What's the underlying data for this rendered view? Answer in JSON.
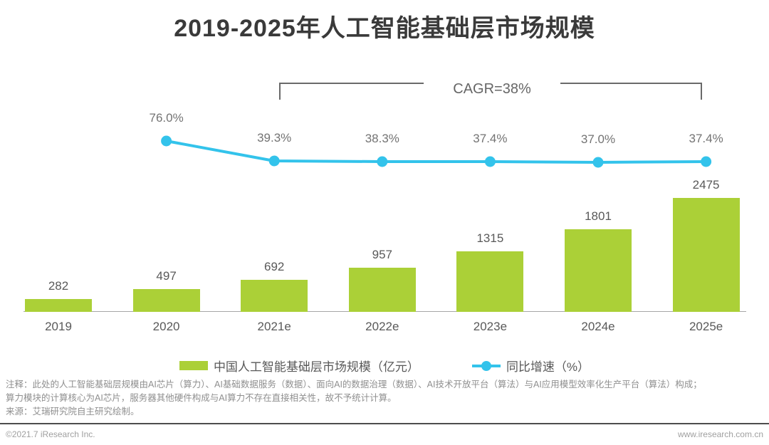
{
  "title": "2019-2025年人工智能基础层市场规模",
  "annotation": {
    "cagr_label": "CAGR=38%"
  },
  "chart_data": {
    "type": "bar",
    "categories": [
      "2019",
      "2020",
      "2021e",
      "2022e",
      "2023e",
      "2024e",
      "2025e"
    ],
    "series": [
      {
        "name": "中国人工智能基础层市场规模（亿元）",
        "type": "bar",
        "color": "#ABD037",
        "values": [
          282,
          497,
          692,
          957,
          1315,
          1801,
          2475
        ]
      },
      {
        "name": "同比增速（%）",
        "type": "line",
        "color": "#33C3EB",
        "values": [
          null,
          76.0,
          39.3,
          38.3,
          37.4,
          37.0,
          37.4
        ],
        "point_labels": [
          "",
          "76.0%",
          "39.3%",
          "38.3%",
          "37.4%",
          "37.0%",
          "37.4%"
        ]
      }
    ],
    "title": "2019-2025年人工智能基础层市场规模",
    "annotation": "CAGR=38%",
    "legend_position": "bottom",
    "grid": false
  },
  "legend": [
    {
      "label": "中国人工智能基础层市场规模（亿元）",
      "color": "#ABD037",
      "marker": "rect"
    },
    {
      "label": "同比增速（%）",
      "color": "#33C3EB",
      "marker": "line-dot"
    }
  ],
  "notes": {
    "line1": "注释：此处的人工智能基础层规模由AI芯片（算力）、AI基础数据服务（数据）、面向AI的数据治理（数据）、AI技术开放平台（算法）与AI应用模型效率化生产平台（算法）构成；",
    "line2": "算力模块的计算核心为AI芯片，服务器其他硬件构成与AI算力不存在直接相关性，故不予统计计算。",
    "source": "来源：艾瑞研究院自主研究绘制。"
  },
  "footer": {
    "copyright": "©2021.7 iResearch Inc.",
    "website": "www.iresearch.com.cn"
  }
}
